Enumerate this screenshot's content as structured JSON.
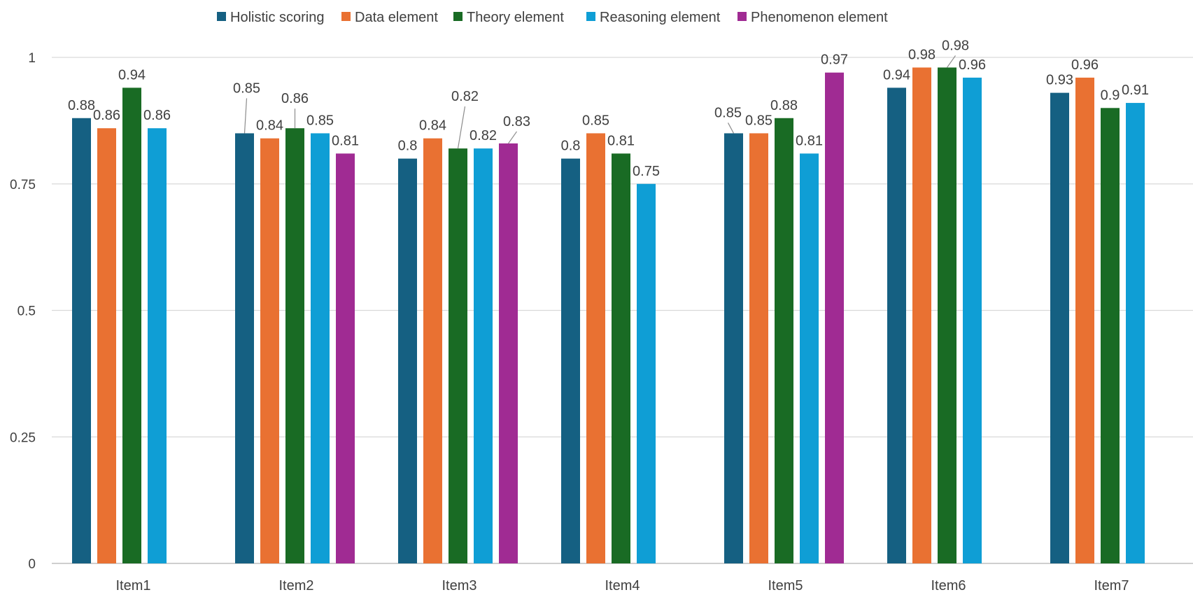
{
  "chart_data": {
    "type": "bar",
    "title": "",
    "xlabel": "",
    "ylabel": "",
    "ylim": [
      0,
      1
    ],
    "yticks": [
      0,
      0.25,
      0.5,
      0.75,
      1
    ],
    "ytick_labels": [
      "0",
      "0.25",
      "0.5",
      "0.75",
      "1"
    ],
    "grid": true,
    "legend_position": "top",
    "categories": [
      "Item1",
      "Item2",
      "Item3",
      "Item4",
      "Item5",
      "Item6",
      "Item7"
    ],
    "series": [
      {
        "name": "Holistic scoring",
        "color": "#156082",
        "values": [
          0.88,
          0.85,
          0.8,
          0.8,
          0.85,
          0.94,
          0.93
        ],
        "labels": [
          "0.88",
          "0.85",
          "0.8",
          "0.8",
          "0.85",
          "0.94",
          "0.93"
        ]
      },
      {
        "name": "Data element",
        "color": "#E97132",
        "values": [
          0.86,
          0.84,
          0.84,
          0.85,
          0.85,
          0.98,
          0.96
        ],
        "labels": [
          "0.86",
          "0.84",
          "0.84",
          "0.85",
          "0.85",
          "0.98",
          "0.96"
        ]
      },
      {
        "name": "Theory element",
        "color": "#196B24",
        "values": [
          0.94,
          0.86,
          0.82,
          0.81,
          0.88,
          0.98,
          0.9
        ],
        "labels": [
          "0.94",
          "0.86",
          "0.82",
          "0.81",
          "0.88",
          "0.98",
          "0.9"
        ]
      },
      {
        "name": "Reasoning element",
        "color": "#0F9ED5",
        "values": [
          0.86,
          0.85,
          0.82,
          0.75,
          0.81,
          0.96,
          0.91
        ],
        "labels": [
          "0.86",
          "0.85",
          "0.82",
          "0.75",
          "0.81",
          "0.96",
          "0.91"
        ]
      },
      {
        "name": "Phenomenon element",
        "color": "#A02B93",
        "values": [
          null,
          0.81,
          0.83,
          null,
          0.97,
          null,
          null
        ],
        "labels": [
          "",
          "0.81",
          "0.83",
          "",
          "0.97",
          "",
          ""
        ]
      }
    ]
  }
}
